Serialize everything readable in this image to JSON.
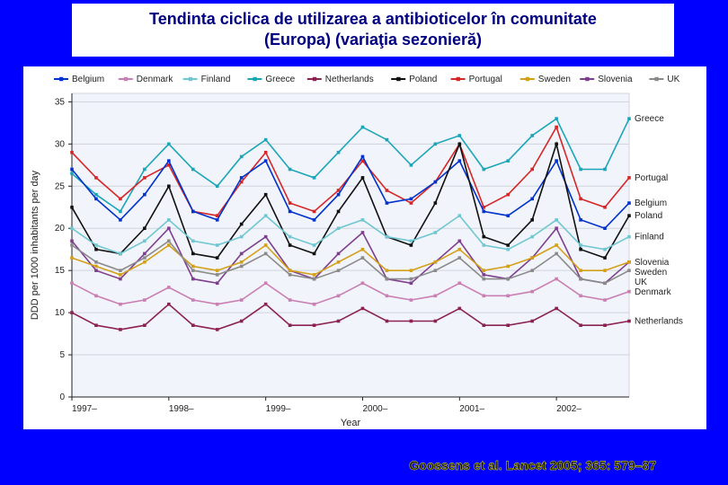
{
  "title": {
    "line1": "Tendinta ciclica de utilizarea a antibioticelor în comunitate",
    "line2": "(Europa) (variaţia sezonieră)"
  },
  "citation": "Goossens et al. Lancet 2005; 365: 579–87",
  "chart": {
    "type": "line",
    "background_color": "#ffffff",
    "plot_bg": "#f2f4fb",
    "grid_color": "#d0d3dc",
    "xlabel": "Year",
    "ylabel": "DDD per 1000 inhabitants per day",
    "ylim": [
      0,
      36
    ],
    "yticks": [
      0,
      5,
      10,
      15,
      20,
      25,
      30,
      35
    ],
    "xtick_labels": [
      "1997–",
      "1998–",
      "1999–",
      "2000–",
      "2001–",
      "2002–"
    ],
    "xtick_positions": [
      0,
      4,
      8,
      12,
      16,
      20
    ],
    "num_points": 24,
    "legend_items": [
      {
        "label": "Belgium",
        "color": "#0033cc",
        "marker": "square"
      },
      {
        "label": "Denmark",
        "color": "#c97fb3",
        "marker": "square"
      },
      {
        "label": "Finland",
        "color": "#6fc7d1",
        "marker": "square"
      },
      {
        "label": "Greece",
        "color": "#1aa5b8",
        "marker": "square"
      },
      {
        "label": "Netherlands",
        "color": "#8b2252",
        "marker": "square"
      },
      {
        "label": "Poland",
        "color": "#111111",
        "marker": "square"
      },
      {
        "label": "Portugal",
        "color": "#d62728",
        "marker": "square"
      },
      {
        "label": "Sweden",
        "color": "#d4a017",
        "marker": "square"
      },
      {
        "label": "Slovenia",
        "color": "#7e3f8f",
        "marker": "square"
      },
      {
        "label": "UK",
        "color": "#8a8a8a",
        "marker": "square"
      }
    ],
    "series": [
      {
        "name": "Greece",
        "color": "#1aa5b8",
        "marker": "square",
        "values": [
          26.5,
          24,
          22,
          27,
          30,
          27,
          25,
          28.5,
          30.5,
          27,
          26,
          29,
          32,
          30.5,
          27.5,
          30,
          31,
          27,
          28,
          31,
          33,
          27,
          27,
          33
        ],
        "end_label": "Greece"
      },
      {
        "name": "Portugal",
        "color": "#d62728",
        "marker": "square",
        "values": [
          29,
          26,
          23.5,
          26,
          27.5,
          22,
          21.5,
          25.5,
          29,
          23,
          22,
          24.5,
          28,
          24.5,
          23,
          25.5,
          30,
          22.5,
          24,
          27,
          32,
          23.5,
          22.5,
          26
        ],
        "end_label": "Portugal"
      },
      {
        "name": "Belgium",
        "color": "#0033cc",
        "marker": "square",
        "values": [
          27,
          23.5,
          21,
          24,
          28,
          22,
          21,
          26,
          28,
          22,
          21,
          24,
          28.5,
          23,
          23.5,
          25.5,
          28,
          22,
          21.5,
          23.5,
          28,
          21,
          20,
          23
        ],
        "end_label": "Belgium"
      },
      {
        "name": "Poland",
        "color": "#111111",
        "marker": "square",
        "values": [
          22.5,
          17.5,
          17,
          20,
          25,
          17,
          16.5,
          20.5,
          24,
          18,
          17,
          22,
          26,
          19,
          18,
          23,
          30,
          19,
          18,
          21,
          30,
          17.5,
          16.5,
          21.5
        ],
        "end_label": "Poland"
      },
      {
        "name": "Finland",
        "color": "#6fc7d1",
        "marker": "square",
        "values": [
          20,
          18,
          17,
          18.5,
          21,
          18.5,
          18,
          19,
          21.5,
          19,
          18,
          20,
          21,
          19,
          18.5,
          19.5,
          21.5,
          18,
          17.5,
          19,
          21,
          18,
          17.5,
          19
        ],
        "end_label": "Finland"
      },
      {
        "name": "Slovenia",
        "color": "#7e3f8f",
        "marker": "square",
        "values": [
          18.5,
          15,
          14,
          17,
          20,
          14,
          13.5,
          17,
          19,
          15,
          14,
          17,
          19.5,
          14,
          13.5,
          16,
          18.5,
          14.5,
          14,
          16.5,
          20,
          14,
          13.5,
          16
        ],
        "end_label": "Slovenia"
      },
      {
        "name": "Sweden",
        "color": "#d4a017",
        "marker": "square",
        "values": [
          16.5,
          15.5,
          14.5,
          16,
          18,
          15.5,
          15,
          16,
          18,
          15,
          14.5,
          16,
          17.5,
          15,
          15,
          16,
          17.5,
          15,
          15.5,
          16.5,
          18,
          15,
          15,
          16
        ],
        "end_label": "Sweden"
      },
      {
        "name": "UK",
        "color": "#8a8a8a",
        "marker": "square",
        "values": [
          18,
          16,
          15,
          16.5,
          18.5,
          15,
          14.5,
          15.5,
          17,
          14.5,
          14,
          15,
          16.5,
          14,
          14,
          15,
          16.5,
          14,
          14,
          15,
          17,
          14,
          13.5,
          15
        ],
        "end_label": "UK"
      },
      {
        "name": "Denmark",
        "color": "#c97fb3",
        "marker": "square",
        "values": [
          13.5,
          12,
          11,
          11.5,
          13,
          11.5,
          11,
          11.5,
          13.5,
          11.5,
          11,
          12,
          13.5,
          12,
          11.5,
          12,
          13.5,
          12,
          12,
          12.5,
          14,
          12,
          11.5,
          12.5
        ],
        "end_label": "Denmark"
      },
      {
        "name": "Netherlands",
        "color": "#8b2252",
        "marker": "square",
        "values": [
          10,
          8.5,
          8,
          8.5,
          11,
          8.5,
          8,
          9,
          11,
          8.5,
          8.5,
          9,
          10.5,
          9,
          9,
          9,
          10.5,
          8.5,
          8.5,
          9,
          10.5,
          8.5,
          8.5,
          9
        ],
        "end_label": "Netherlands"
      }
    ]
  }
}
